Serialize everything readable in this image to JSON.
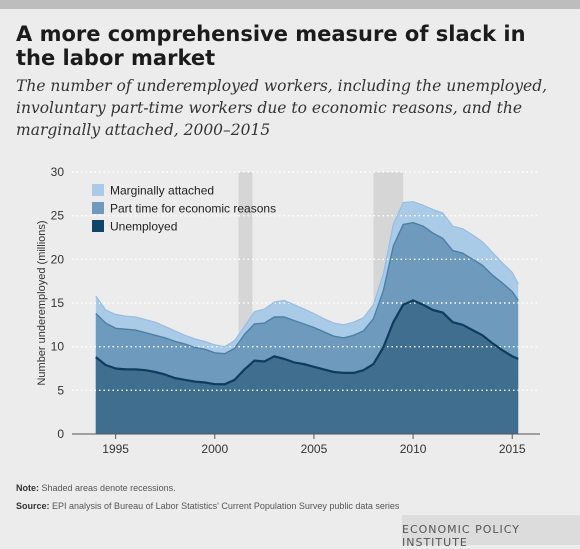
{
  "header": {
    "title": "A more comprehensive measure of slack in the labor market",
    "subtitle": "The number of underemployed workers, including the unemployed, involuntary part-time workers due to economic reasons, and the marginally attached, 2000–2015"
  },
  "notes": {
    "note_label": "Note:",
    "note_text": "Shaded areas denote recessions.",
    "source_label": "Source:",
    "source_text": "EPI analysis of Bureau of Labor Statistics' Current Population Survey public data series"
  },
  "brand": {
    "name": "ECONOMIC POLICY INSTITUTE"
  },
  "colors": {
    "marginally_attached": "#a9cbe8",
    "part_time": "#6e9bbd",
    "unemployed_fill": "#3f6e8f",
    "unemployed_line": "#0e3c5c",
    "recession": "#d6d6d6"
  },
  "chart_data": {
    "type": "area",
    "stacked": true,
    "ylabel": "Number underemployed (millions)",
    "ylim": [
      0,
      30
    ],
    "yticks": [
      0,
      5,
      10,
      15,
      20,
      25,
      30
    ],
    "xticks": [
      1995,
      2000,
      2005,
      2010,
      2015
    ],
    "grid": true,
    "legend_position": "top-left",
    "recessions": [
      [
        2001.2,
        2001.9
      ],
      [
        2008.0,
        2009.5
      ]
    ],
    "x": [
      1994.0,
      1994.5,
      1995.0,
      1995.5,
      1996.0,
      1996.5,
      1997.0,
      1997.5,
      1998.0,
      1998.5,
      1999.0,
      1999.5,
      2000.0,
      2000.5,
      2001.0,
      2001.5,
      2002.0,
      2002.5,
      2003.0,
      2003.5,
      2004.0,
      2004.5,
      2005.0,
      2005.5,
      2006.0,
      2006.5,
      2007.0,
      2007.5,
      2008.0,
      2008.5,
      2009.0,
      2009.5,
      2010.0,
      2010.5,
      2011.0,
      2011.5,
      2012.0,
      2012.5,
      2013.0,
      2013.5,
      2014.0,
      2014.5,
      2015.0,
      2015.3
    ],
    "series": [
      {
        "name": "Unemployed",
        "values": [
          8.8,
          7.9,
          7.5,
          7.4,
          7.4,
          7.3,
          7.1,
          6.8,
          6.4,
          6.2,
          6.0,
          5.9,
          5.7,
          5.7,
          6.2,
          7.4,
          8.4,
          8.3,
          8.9,
          8.6,
          8.2,
          8.0,
          7.7,
          7.4,
          7.1,
          7.0,
          7.0,
          7.3,
          8.0,
          9.9,
          12.8,
          14.8,
          15.3,
          14.8,
          14.2,
          13.9,
          12.8,
          12.5,
          11.9,
          11.3,
          10.4,
          9.6,
          8.9,
          8.6
        ]
      },
      {
        "name": "Part time for economic reasons",
        "values": [
          13.8,
          12.7,
          12.1,
          12.0,
          11.9,
          11.6,
          11.3,
          11.0,
          10.6,
          10.3,
          9.9,
          9.7,
          9.3,
          9.2,
          9.8,
          11.4,
          12.6,
          12.7,
          13.4,
          13.4,
          13.0,
          12.6,
          12.2,
          11.7,
          11.2,
          11.0,
          11.3,
          11.8,
          13.2,
          16.4,
          21.5,
          24.0,
          24.2,
          23.8,
          23.0,
          22.4,
          21.0,
          20.7,
          20.0,
          19.3,
          18.2,
          17.3,
          16.3,
          15.3
        ]
      },
      {
        "name": "Marginally attached",
        "values": [
          15.8,
          14.2,
          13.7,
          13.5,
          13.4,
          13.1,
          12.8,
          12.3,
          11.8,
          11.3,
          10.9,
          10.6,
          10.2,
          10.0,
          10.7,
          12.3,
          14.0,
          14.3,
          15.1,
          15.3,
          14.8,
          14.3,
          13.8,
          13.2,
          12.7,
          12.5,
          12.8,
          13.3,
          14.8,
          18.3,
          24.0,
          26.5,
          26.6,
          26.2,
          25.7,
          25.3,
          23.8,
          23.5,
          22.8,
          22.0,
          20.8,
          19.6,
          18.5,
          17.2
        ]
      }
    ],
    "legend": [
      "Marginally attached",
      "Part time for economic reasons",
      "Unemployed"
    ]
  }
}
